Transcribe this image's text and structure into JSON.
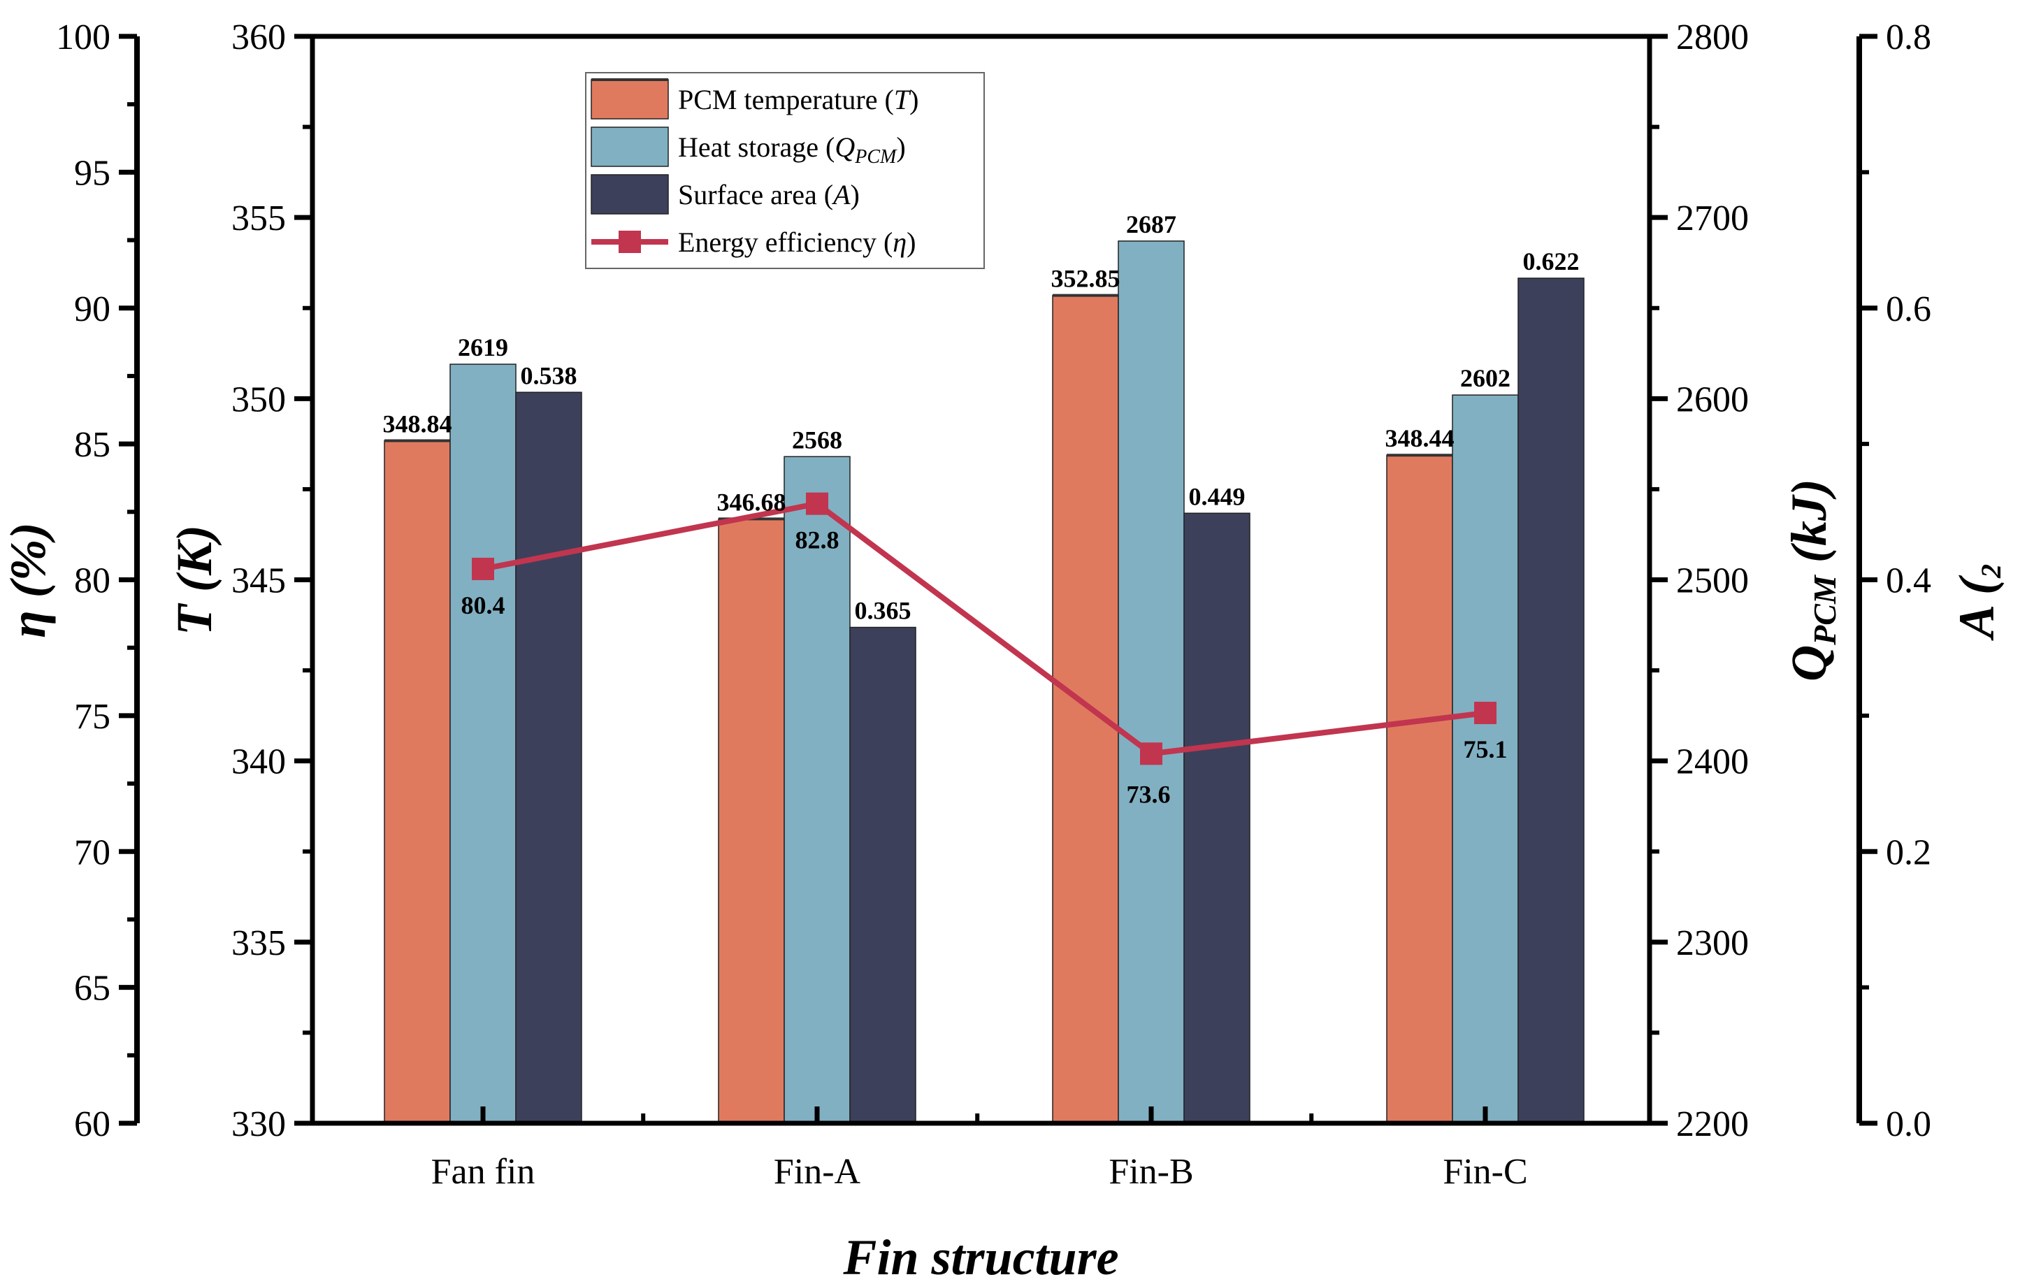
{
  "chart_data": {
    "type": "bar",
    "categories": [
      "Fan fin",
      "Fin-A",
      "Fin-B",
      "Fin-C"
    ],
    "xlabel": "Fin structure",
    "series": [
      {
        "name": "PCM temperature",
        "symbol": "T",
        "kind": "bar",
        "axis": "T",
        "values": [
          348.84,
          346.68,
          352.85,
          348.44
        ],
        "labels": [
          "348.84",
          "346.68",
          "352.85",
          "348.44"
        ],
        "color": "#e07a5f"
      },
      {
        "name": "Heat storage",
        "symbol": "Q",
        "subscript": "PCM",
        "kind": "bar",
        "axis": "Q",
        "values": [
          2619,
          2568,
          2687,
          2602
        ],
        "labels": [
          "2619",
          "2568",
          "2687",
          "2602"
        ],
        "color": "#81b0c2"
      },
      {
        "name": "Surface area",
        "symbol": "A",
        "kind": "bar",
        "axis": "A",
        "values": [
          0.538,
          0.365,
          0.449,
          0.622
        ],
        "labels": [
          "0.538",
          "0.365",
          "0.449",
          "0.622"
        ],
        "color": "#3d405b"
      },
      {
        "name": "Energy efficiency",
        "symbol": "η",
        "kind": "line",
        "axis": "eta",
        "values": [
          80.4,
          82.8,
          73.6,
          75.1
        ],
        "labels": [
          "80.4",
          "82.8",
          "73.6",
          "75.1"
        ],
        "color": "#c1354f"
      }
    ],
    "axes": {
      "eta": {
        "title_sym": "η",
        "title_rest": " (%)",
        "range": [
          60,
          100
        ],
        "ticks": [
          "60",
          "65",
          "70",
          "75",
          "80",
          "85",
          "90",
          "95",
          "100"
        ]
      },
      "T": {
        "title_sym": "T",
        "title_rest": " (K)",
        "range": [
          330,
          360
        ],
        "ticks": [
          "330",
          "335",
          "340",
          "345",
          "350",
          "355",
          "360"
        ]
      },
      "Q": {
        "title_sym": "Q",
        "title_sub": "PCM",
        "title_rest": " (kJ)",
        "range": [
          2200,
          2800
        ],
        "ticks": [
          "2200",
          "2300",
          "2400",
          "2500",
          "2600",
          "2700",
          "2800"
        ]
      },
      "A": {
        "title_sym": "A",
        "title_rest": " (",
        "title_sub2": "2",
        "range": [
          0.0,
          0.8
        ],
        "ticks": [
          "0.0",
          "0.2",
          "0.4",
          "0.6",
          "0.8"
        ]
      }
    },
    "legend": {
      "position": "top-center",
      "entries": [
        {
          "text": "PCM temperature (",
          "sym": "T",
          "tail": ")"
        },
        {
          "text": "Heat storage (",
          "sym": "Q",
          "sub": "PCM",
          "tail": ")"
        },
        {
          "text": "Surface area (",
          "sym": "A",
          "tail": ")"
        },
        {
          "text": "Energy efficiency (",
          "sym": "η",
          "tail": ")"
        }
      ]
    }
  }
}
